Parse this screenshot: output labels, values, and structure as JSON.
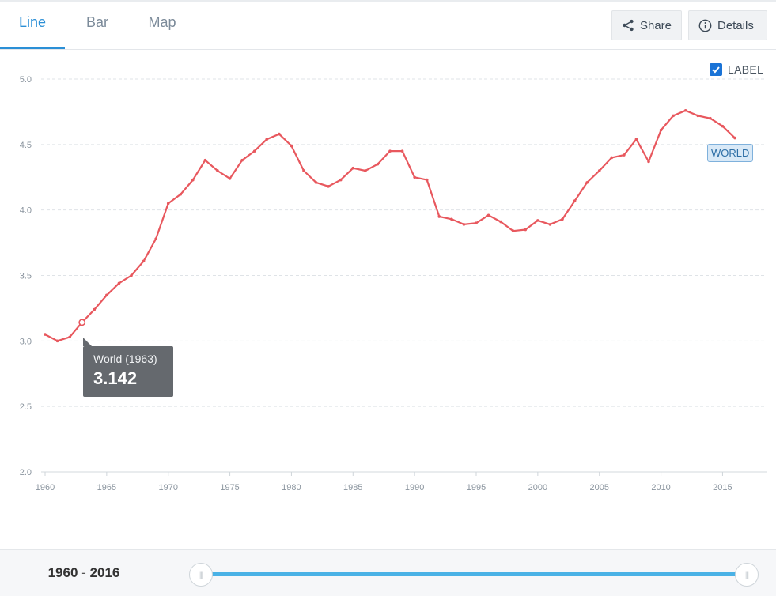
{
  "tabs": [
    {
      "label": "Line",
      "active": true
    },
    {
      "label": "Bar",
      "active": false
    },
    {
      "label": "Map",
      "active": false
    }
  ],
  "toolbar": {
    "share_label": "Share",
    "details_label": "Details"
  },
  "label_toggle": {
    "text": "LABEL",
    "checked": true
  },
  "series_tag": "WORLD",
  "tooltip": {
    "title": "World (1963)",
    "value": "3.142"
  },
  "range": {
    "start": "1960",
    "separator": "-",
    "end": "2016"
  },
  "colors": {
    "series": "#e8585e",
    "accent": "#2b8fd6",
    "slider": "#4ab2e6"
  },
  "chart_data": {
    "type": "line",
    "ylim": [
      2.0,
      5.0
    ],
    "yticks": [
      "2.0",
      "2.5",
      "3.0",
      "3.5",
      "4.0",
      "4.5",
      "5.0"
    ],
    "xticks": [
      "1960",
      "1965",
      "1970",
      "1975",
      "1980",
      "1985",
      "1990",
      "1995",
      "2000",
      "2005",
      "2010",
      "2015"
    ],
    "grid": true,
    "highlight": {
      "x": 1963,
      "y": 3.142
    },
    "series": [
      {
        "name": "WORLD",
        "x": [
          1960,
          1961,
          1962,
          1963,
          1964,
          1965,
          1966,
          1967,
          1968,
          1969,
          1970,
          1971,
          1972,
          1973,
          1974,
          1975,
          1976,
          1977,
          1978,
          1979,
          1980,
          1981,
          1982,
          1983,
          1984,
          1985,
          1986,
          1987,
          1988,
          1989,
          1990,
          1991,
          1992,
          1993,
          1994,
          1995,
          1996,
          1997,
          1998,
          1999,
          2000,
          2001,
          2002,
          2003,
          2004,
          2005,
          2006,
          2007,
          2008,
          2009,
          2010,
          2011,
          2012,
          2013,
          2014,
          2015,
          2016
        ],
        "values": [
          3.05,
          3.0,
          3.03,
          3.142,
          3.24,
          3.35,
          3.44,
          3.5,
          3.61,
          3.78,
          4.05,
          4.12,
          4.23,
          4.38,
          4.3,
          4.24,
          4.38,
          4.45,
          4.54,
          4.58,
          4.49,
          4.3,
          4.21,
          4.18,
          4.23,
          4.32,
          4.3,
          4.35,
          4.45,
          4.45,
          4.25,
          4.23,
          3.95,
          3.93,
          3.89,
          3.9,
          3.96,
          3.91,
          3.84,
          3.85,
          3.92,
          3.89,
          3.93,
          4.07,
          4.21,
          4.3,
          4.4,
          4.42,
          4.54,
          4.37,
          4.61,
          4.72,
          4.76,
          4.72,
          4.7,
          4.64,
          4.55
        ]
      }
    ]
  }
}
